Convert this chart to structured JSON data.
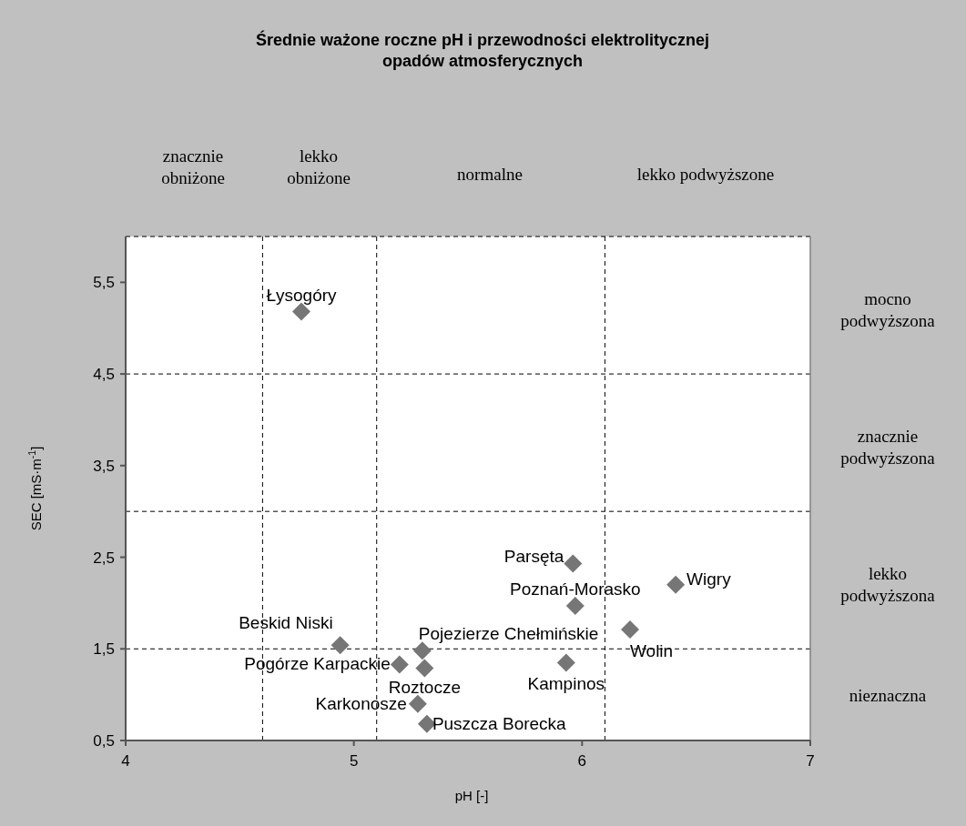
{
  "chart_data": {
    "type": "scatter",
    "title": "Średnie ważone roczne pH i przewodności elektrolitycznej opadów atmosferycznych",
    "xlabel": "pH [-]",
    "ylabel": "SEC [mS·m$^{-1}$]",
    "xlim": [
      4,
      7
    ],
    "xticks": [
      4,
      5,
      6,
      7
    ],
    "ylim": [
      0.5,
      6
    ],
    "yticks": [
      {
        "value": 0.5,
        "label": "0,5"
      },
      {
        "value": 1.5,
        "label": "1,5"
      },
      {
        "value": 2.5,
        "label": "2,5"
      },
      {
        "value": 3.5,
        "label": "3,5"
      },
      {
        "value": 4.5,
        "label": "4,5"
      },
      {
        "value": 5.5,
        "label": "5,5"
      }
    ],
    "marker": "diamond",
    "series": [
      {
        "name": "Łysogóry",
        "color": "#767676",
        "x": [
          4.77
        ],
        "values": [
          5.18
        ]
      },
      {
        "name": "Beskid Niski",
        "color": "#767676",
        "x": [
          4.94
        ],
        "values": [
          1.54
        ]
      },
      {
        "name": "Pogórze Karpackie",
        "color": "#767676",
        "x": [
          5.2
        ],
        "values": [
          1.33
        ]
      },
      {
        "name": "Pojezierze Chełmińskie",
        "color": "#767676",
        "x": [
          5.3
        ],
        "values": [
          1.48
        ]
      },
      {
        "name": "Roztocze",
        "color": "#767676",
        "x": [
          5.31
        ],
        "values": [
          1.29
        ]
      },
      {
        "name": "Karkonosze",
        "color": "#767676",
        "x": [
          5.28
        ],
        "values": [
          0.9
        ]
      },
      {
        "name": "Puszcza Borecka",
        "color": "#767676",
        "x": [
          5.32
        ],
        "values": [
          0.68
        ]
      },
      {
        "name": "Parsęta",
        "color": "#767676",
        "x": [
          5.96
        ],
        "values": [
          2.43
        ]
      },
      {
        "name": "Poznań-Morasko",
        "color": "#767676",
        "x": [
          5.97
        ],
        "values": [
          1.97
        ]
      },
      {
        "name": "Wolin",
        "color": "#767676",
        "x": [
          6.21
        ],
        "values": [
          1.71
        ]
      },
      {
        "name": "Wigry",
        "color": "#767676",
        "x": [
          6.41
        ],
        "values": [
          2.2
        ]
      },
      {
        "name": "Kampinos",
        "color": "#767676",
        "x": [
          5.93
        ],
        "values": [
          1.35
        ]
      }
    ],
    "ref_lines": [
      {
        "axis": "x",
        "value": 4.6,
        "line_style": "dashed"
      },
      {
        "axis": "x",
        "value": 5.1,
        "line_style": "dashed"
      },
      {
        "axis": "x",
        "value": 6.1,
        "line_style": "dashed"
      },
      {
        "axis": "y",
        "value": 1.5,
        "line_style": "dashed"
      },
      {
        "axis": "y",
        "value": 3,
        "line_style": "dashed"
      },
      {
        "axis": "y",
        "value": 4.5,
        "line_style": "dashed"
      }
    ],
    "annotations": [
      "znacznie obniżone",
      "lekko obniżone",
      "normalne",
      "lekko podwyższone",
      "mocno podwyższona",
      "znacznie podwyższona",
      "lekko podwyższona",
      "nieznaczna"
    ]
  }
}
